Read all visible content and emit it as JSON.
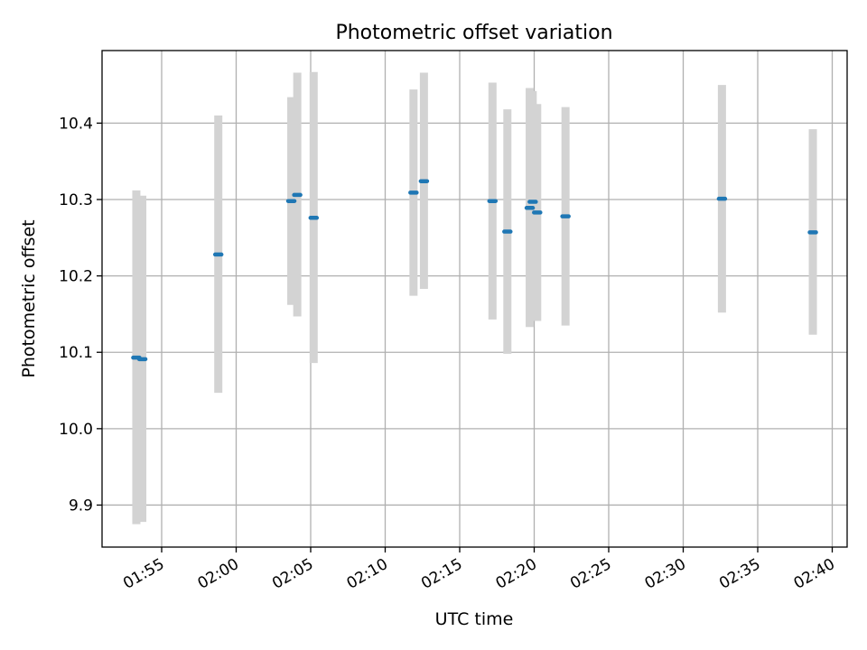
{
  "chart_data": {
    "type": "scatter",
    "title": "Photometric offset variation",
    "xlabel": "UTC time",
    "ylabel": "Photometric offset",
    "x_ticks": [
      "01:55",
      "02:00",
      "02:05",
      "02:10",
      "02:15",
      "02:20",
      "02:25",
      "02:30",
      "02:35",
      "02:40"
    ],
    "y_ticks": [
      "9.9",
      "10.0",
      "10.1",
      "10.2",
      "10.3",
      "10.4"
    ],
    "xlim": [
      "01:51:00",
      "02:41:00"
    ],
    "ylim": [
      9.845,
      10.495
    ],
    "grid": true,
    "colors": {
      "point": "#1f77b4",
      "error_bar": "#d3d3d3",
      "grid": "#b0b0b0"
    },
    "points": [
      {
        "time": "01:53:18",
        "y": 10.093,
        "ylow": 9.875,
        "yhigh": 10.312
      },
      {
        "time": "01:53:42",
        "y": 10.091,
        "ylow": 9.878,
        "yhigh": 10.305
      },
      {
        "time": "01:58:48",
        "y": 10.228,
        "ylow": 10.047,
        "yhigh": 10.41
      },
      {
        "time": "02:03:42",
        "y": 10.298,
        "ylow": 10.162,
        "yhigh": 10.434
      },
      {
        "time": "02:04:06",
        "y": 10.306,
        "ylow": 10.147,
        "yhigh": 10.466
      },
      {
        "time": "02:05:12",
        "y": 10.276,
        "ylow": 10.086,
        "yhigh": 10.467
      },
      {
        "time": "02:11:54",
        "y": 10.309,
        "ylow": 10.174,
        "yhigh": 10.444
      },
      {
        "time": "02:12:36",
        "y": 10.324,
        "ylow": 10.183,
        "yhigh": 10.466
      },
      {
        "time": "02:17:12",
        "y": 10.298,
        "ylow": 10.143,
        "yhigh": 10.453
      },
      {
        "time": "02:18:12",
        "y": 10.258,
        "ylow": 10.098,
        "yhigh": 10.418
      },
      {
        "time": "02:19:42",
        "y": 10.289,
        "ylow": 10.133,
        "yhigh": 10.446
      },
      {
        "time": "02:19:54",
        "y": 10.297,
        "ylow": 10.152,
        "yhigh": 10.442
      },
      {
        "time": "02:20:12",
        "y": 10.283,
        "ylow": 10.141,
        "yhigh": 10.425
      },
      {
        "time": "02:22:06",
        "y": 10.278,
        "ylow": 10.135,
        "yhigh": 10.421
      },
      {
        "time": "02:32:36",
        "y": 10.301,
        "ylow": 10.152,
        "yhigh": 10.45
      },
      {
        "time": "02:38:42",
        "y": 10.257,
        "ylow": 10.123,
        "yhigh": 10.392
      }
    ]
  }
}
